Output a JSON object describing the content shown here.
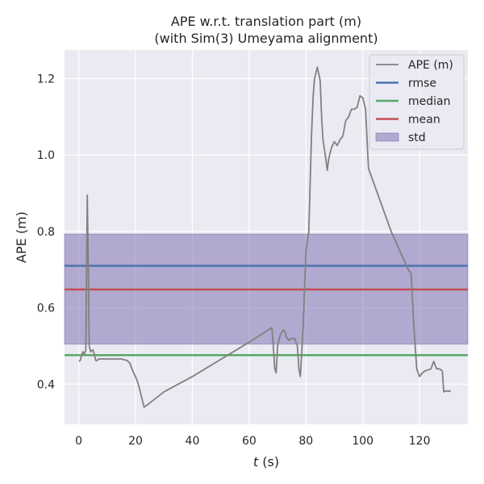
{
  "chart_data": {
    "type": "line",
    "title": "APE w.r.t. translation part (m)",
    "subtitle": "(with Sim(3) Umeyama alignment)",
    "xlabel_var": "t",
    "xlabel_unit": " (s)",
    "ylabel": "APE (m)",
    "xlim": [
      -5,
      137
    ],
    "ylim": [
      0.295,
      1.275
    ],
    "xticks": [
      0,
      20,
      40,
      60,
      80,
      100,
      120
    ],
    "xtick_labels": [
      "0",
      "20",
      "40",
      "60",
      "80",
      "100",
      "120"
    ],
    "yticks": [
      0.4,
      0.6,
      0.8,
      1.0,
      1.2
    ],
    "ytick_labels": [
      "0.4",
      "0.6",
      "0.8",
      "1.0",
      "1.2"
    ],
    "grid": true,
    "legend_position": "top-right",
    "series": [
      {
        "name": "APE (m)",
        "color": "#808080",
        "x": [
          0,
          0.5,
          1,
          1.5,
          2,
          2.5,
          3,
          3.3,
          3.7,
          4.2,
          5,
          5.5,
          6,
          6.5,
          7,
          8,
          10,
          15,
          17,
          18,
          19,
          20,
          21,
          22,
          23,
          24,
          30,
          40,
          50,
          60,
          68,
          68.5,
          69,
          69.5,
          70,
          71,
          72,
          72.5,
          73,
          74,
          75,
          76,
          77,
          77.5,
          78,
          79,
          80,
          81,
          82,
          82.5,
          83,
          84,
          85,
          85.5,
          86,
          87,
          87.5,
          88,
          89,
          90,
          91,
          92,
          93,
          94,
          95,
          96,
          97,
          98,
          99,
          100,
          101,
          102,
          110,
          116,
          117,
          118,
          119,
          120,
          121,
          122,
          124,
          125,
          126,
          127,
          128,
          128.5,
          129,
          131
        ],
        "y": [
          0.46,
          0.462,
          0.475,
          0.485,
          0.478,
          0.49,
          0.895,
          0.75,
          0.5,
          0.485,
          0.49,
          0.478,
          0.462,
          0.462,
          0.466,
          0.466,
          0.466,
          0.466,
          0.462,
          0.455,
          0.435,
          0.42,
          0.4,
          0.37,
          0.34,
          0.345,
          0.38,
          0.42,
          0.465,
          0.51,
          0.548,
          0.5,
          0.44,
          0.43,
          0.5,
          0.53,
          0.542,
          0.54,
          0.525,
          0.515,
          0.52,
          0.52,
          0.5,
          0.44,
          0.42,
          0.55,
          0.75,
          0.8,
          1.06,
          1.15,
          1.2,
          1.23,
          1.195,
          1.1,
          1.04,
          0.99,
          0.96,
          0.99,
          1.02,
          1.035,
          1.025,
          1.04,
          1.05,
          1.09,
          1.1,
          1.12,
          1.12,
          1.125,
          1.155,
          1.15,
          1.12,
          0.965,
          0.8,
          0.7,
          0.69,
          0.55,
          0.44,
          0.42,
          0.43,
          0.435,
          0.44,
          0.46,
          0.44,
          0.44,
          0.435,
          0.38,
          0.382,
          0.382
        ]
      },
      {
        "name": "rmse",
        "color": "#4c72b0",
        "value": 0.71
      },
      {
        "name": "median",
        "color": "#55a868",
        "value": 0.476
      },
      {
        "name": "mean",
        "color": "#c44e52",
        "value": 0.648
      },
      {
        "name": "std",
        "color": "#8172b3",
        "range": [
          0.505,
          0.793
        ]
      }
    ]
  }
}
